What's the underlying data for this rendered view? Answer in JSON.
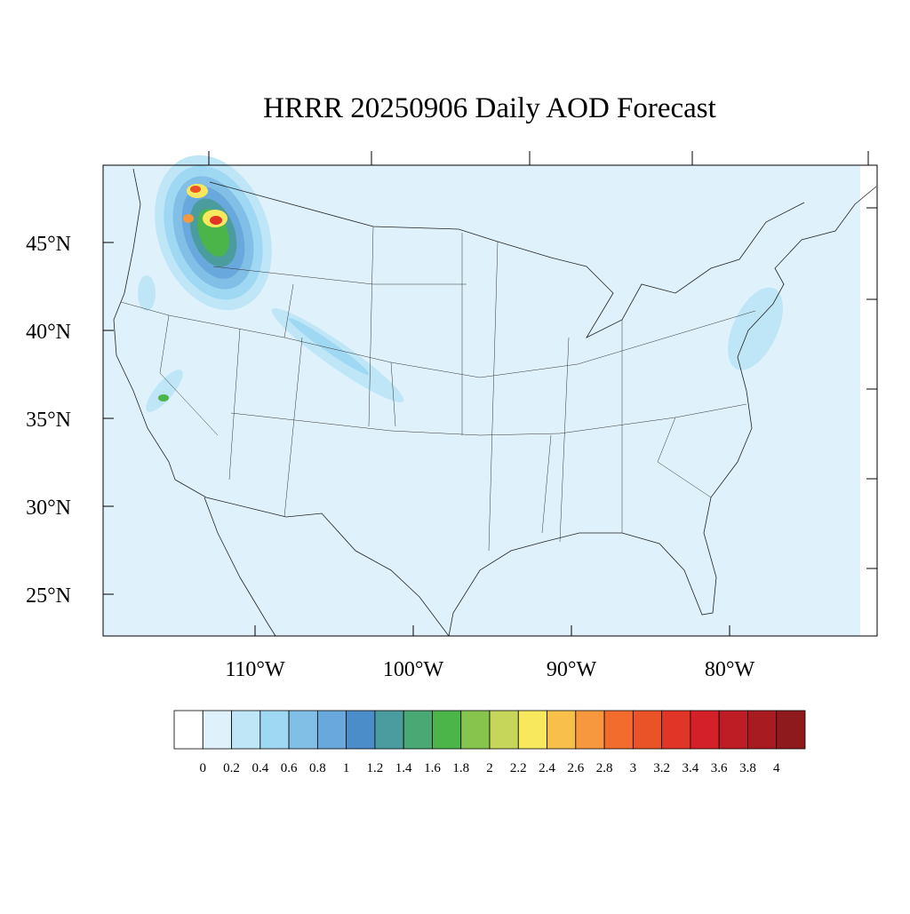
{
  "title": "HRRR 20250906 Daily AOD Forecast",
  "latitude_labels": [
    "45°N",
    "40°N",
    "35°N",
    "30°N",
    "25°N"
  ],
  "longitude_labels": [
    "110°W",
    "100°W",
    "90°W",
    "80°W"
  ],
  "colorbar": {
    "levels": [
      0,
      0.2,
      0.4,
      0.6,
      0.8,
      1,
      1.2,
      1.4,
      1.6,
      1.8,
      2,
      2.2,
      2.4,
      2.6,
      2.8,
      3,
      3.2,
      3.4,
      3.6,
      3.8,
      4
    ],
    "colors": [
      "#ffffff",
      "#dff2fb",
      "#bfe6f7",
      "#9fd8f3",
      "#82bfe6",
      "#68a8dc",
      "#4a8dc9",
      "#4b9c9f",
      "#49a873",
      "#4bb54a",
      "#86c44e",
      "#c5d65a",
      "#f8e85e",
      "#f8c04a",
      "#f7983e",
      "#f26c2e",
      "#ea5228",
      "#e03527",
      "#d42028",
      "#bf1d25",
      "#a81b21",
      "#8f1a1d"
    ]
  }
}
